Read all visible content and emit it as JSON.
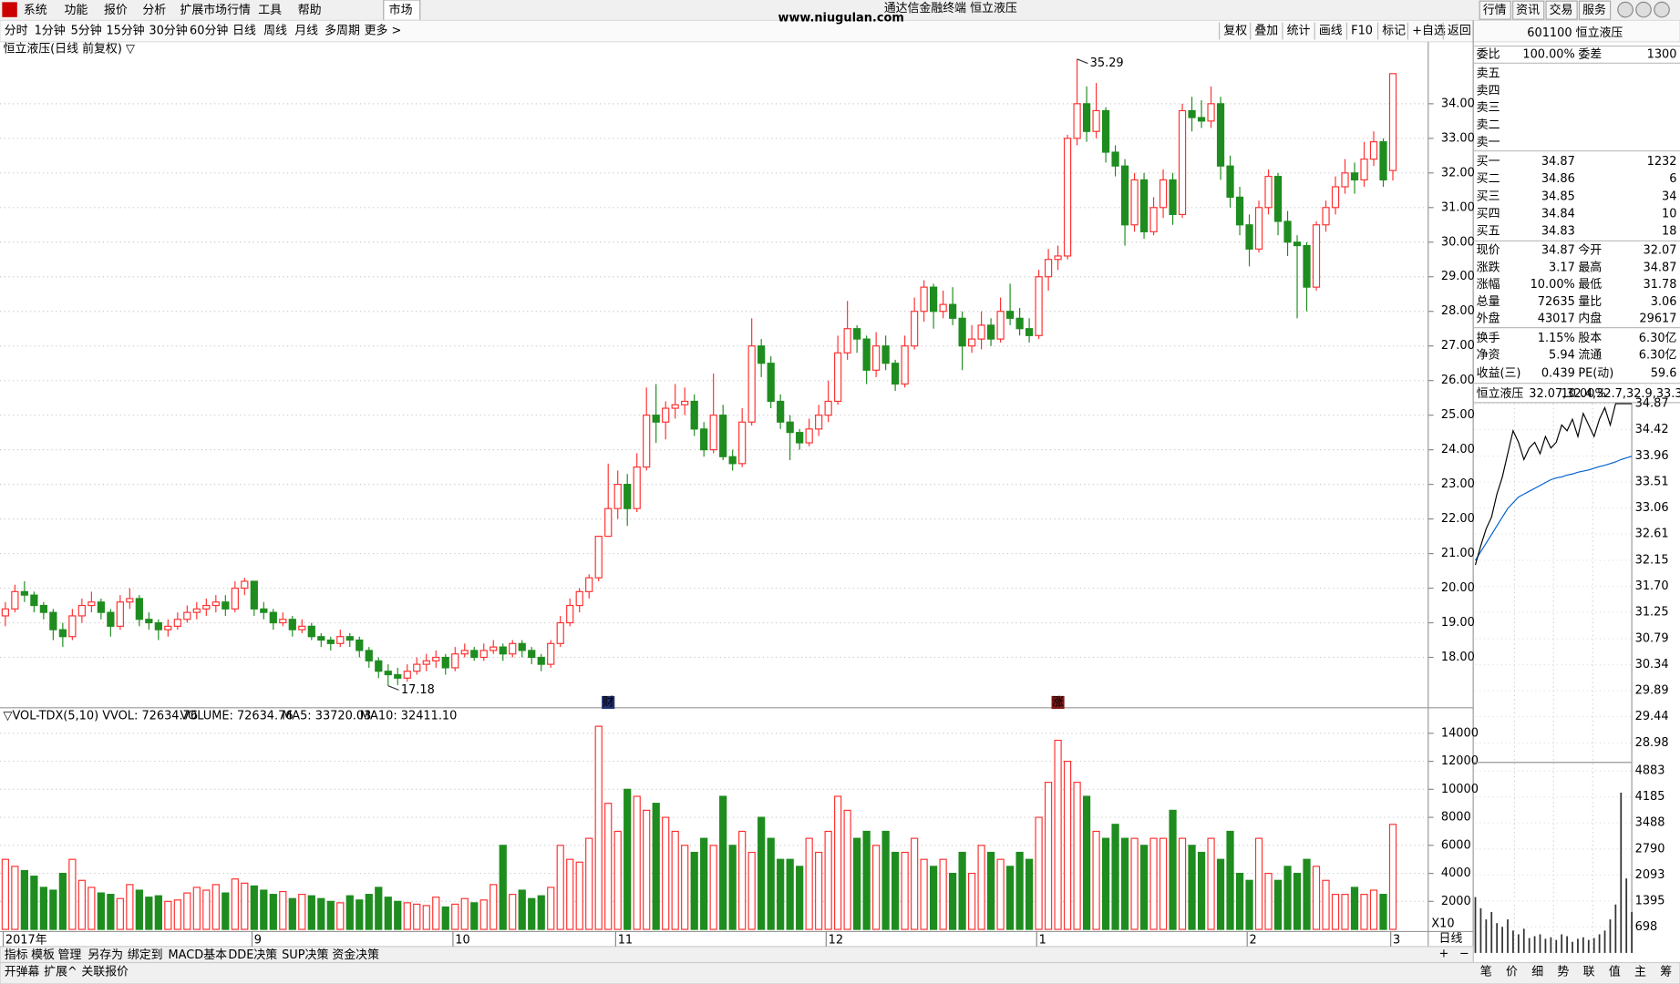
{
  "title_bar": "通达信金融终端 恒立液压",
  "watermark": "www.niugulan.com",
  "menu": [
    "系统",
    "功能",
    "报价",
    "分析",
    "扩展市场行情",
    "工具",
    "帮助"
  ],
  "market_tab": "市场",
  "top_buttons": [
    "行情",
    "资讯",
    "交易",
    "服务"
  ],
  "periods": [
    "分时",
    "1分钟",
    "5分钟",
    "15分钟",
    "30分钟",
    "60分钟",
    "日线",
    "周线",
    "月线",
    "多周期",
    "更多 >"
  ],
  "tools": [
    "复权",
    "叠加",
    "统计",
    "画线",
    "F10",
    "标记",
    "+自选",
    "返回"
  ],
  "chart_title": "恒立液压(日线 前复权) ▽",
  "kline": {
    "type": "candlestick",
    "ylim": [
      16.73,
      35.76
    ],
    "yticks": [
      {
        "value": 18,
        "label": "18.00"
      },
      {
        "value": 19,
        "label": "19.00"
      },
      {
        "value": 20,
        "label": "20.00"
      },
      {
        "value": 21,
        "label": "21.00"
      },
      {
        "value": 22,
        "label": "22.00"
      },
      {
        "value": 23,
        "label": "23.00"
      },
      {
        "value": 24,
        "label": "24.00"
      },
      {
        "value": 25,
        "label": "25.00"
      },
      {
        "value": 26,
        "label": "26.00"
      },
      {
        "value": 27,
        "label": "27.00"
      },
      {
        "value": 28,
        "label": "28.00"
      },
      {
        "value": 29,
        "label": "29.00"
      },
      {
        "value": 30,
        "label": "30.00"
      },
      {
        "value": 31,
        "label": "31.00"
      },
      {
        "value": 32,
        "label": "32.00"
      },
      {
        "value": 33,
        "label": "33.00"
      },
      {
        "value": 34,
        "label": "34.00"
      }
    ],
    "high_label": "35.29",
    "low_label": "17.18",
    "markers": [
      "财",
      "涨"
    ],
    "date_labels": [
      "2017年",
      "9",
      "10",
      "11",
      "12",
      "1",
      "2",
      "3"
    ],
    "candles": [
      [
        19.2,
        19.6,
        18.9,
        19.4
      ],
      [
        19.4,
        20.1,
        19.3,
        19.9
      ],
      [
        19.9,
        20.2,
        19.6,
        19.8
      ],
      [
        19.8,
        19.9,
        19.3,
        19.5
      ],
      [
        19.5,
        19.6,
        19.1,
        19.3
      ],
      [
        19.3,
        19.4,
        18.5,
        18.8
      ],
      [
        18.8,
        19.0,
        18.3,
        18.6
      ],
      [
        18.6,
        19.4,
        18.5,
        19.2
      ],
      [
        19.2,
        19.7,
        19.0,
        19.5
      ],
      [
        19.5,
        19.9,
        19.3,
        19.6
      ],
      [
        19.6,
        19.7,
        19.1,
        19.3
      ],
      [
        19.3,
        19.4,
        18.6,
        18.9
      ],
      [
        18.9,
        19.8,
        18.8,
        19.6
      ],
      [
        19.6,
        20.0,
        19.4,
        19.7
      ],
      [
        19.7,
        19.8,
        18.9,
        19.1
      ],
      [
        19.1,
        19.3,
        18.8,
        19.0
      ],
      [
        19.0,
        19.1,
        18.5,
        18.8
      ],
      [
        18.8,
        19.1,
        18.6,
        18.9
      ],
      [
        18.9,
        19.3,
        18.8,
        19.1
      ],
      [
        19.1,
        19.5,
        19.0,
        19.3
      ],
      [
        19.3,
        19.6,
        19.1,
        19.4
      ],
      [
        19.4,
        19.7,
        19.2,
        19.5
      ],
      [
        19.5,
        19.8,
        19.3,
        19.6
      ],
      [
        19.6,
        19.8,
        19.2,
        19.4
      ],
      [
        19.4,
        20.2,
        19.3,
        20.0
      ],
      [
        20.0,
        20.3,
        19.8,
        20.2
      ],
      [
        20.2,
        20.2,
        19.2,
        19.4
      ],
      [
        19.4,
        19.6,
        19.1,
        19.3
      ],
      [
        19.3,
        19.4,
        18.8,
        19.0
      ],
      [
        19.0,
        19.3,
        18.9,
        19.1
      ],
      [
        19.1,
        19.2,
        18.6,
        18.8
      ],
      [
        18.8,
        19.1,
        18.7,
        18.9
      ],
      [
        18.9,
        19.0,
        18.5,
        18.6
      ],
      [
        18.6,
        18.7,
        18.3,
        18.5
      ],
      [
        18.5,
        18.6,
        18.2,
        18.4
      ],
      [
        18.4,
        18.8,
        18.3,
        18.6
      ],
      [
        18.6,
        18.7,
        18.3,
        18.5
      ],
      [
        18.5,
        18.6,
        18.0,
        18.2
      ],
      [
        18.2,
        18.3,
        17.7,
        17.9
      ],
      [
        17.9,
        18.0,
        17.4,
        17.6
      ],
      [
        17.6,
        17.8,
        17.18,
        17.5
      ],
      [
        17.5,
        17.7,
        17.2,
        17.4
      ],
      [
        17.4,
        17.8,
        17.3,
        17.6
      ],
      [
        17.6,
        18.0,
        17.5,
        17.8
      ],
      [
        17.8,
        18.1,
        17.6,
        17.9
      ],
      [
        17.9,
        18.2,
        17.7,
        18.0
      ],
      [
        18.0,
        18.1,
        17.5,
        17.7
      ],
      [
        17.7,
        18.3,
        17.6,
        18.1
      ],
      [
        18.1,
        18.4,
        18.0,
        18.2
      ],
      [
        18.2,
        18.3,
        17.9,
        18.0
      ],
      [
        18.0,
        18.4,
        17.9,
        18.2
      ],
      [
        18.2,
        18.5,
        18.1,
        18.3
      ],
      [
        18.3,
        18.4,
        17.9,
        18.1
      ],
      [
        18.1,
        18.5,
        18.0,
        18.4
      ],
      [
        18.4,
        18.5,
        18.0,
        18.2
      ],
      [
        18.2,
        18.3,
        17.8,
        18.0
      ],
      [
        18.0,
        18.1,
        17.6,
        17.8
      ],
      [
        17.8,
        18.5,
        17.7,
        18.4
      ],
      [
        18.4,
        19.2,
        18.3,
        19.0
      ],
      [
        19.0,
        19.7,
        18.9,
        19.5
      ],
      [
        19.5,
        20.0,
        19.3,
        19.9
      ],
      [
        19.9,
        20.4,
        19.7,
        20.3
      ],
      [
        20.3,
        21.5,
        20.2,
        21.5
      ],
      [
        21.5,
        23.6,
        21.5,
        22.3
      ],
      [
        22.3,
        23.4,
        22.0,
        23.0
      ],
      [
        23.0,
        23.3,
        21.8,
        22.3
      ],
      [
        22.3,
        23.9,
        22.2,
        23.5
      ],
      [
        23.5,
        25.8,
        23.4,
        25.0
      ],
      [
        25.0,
        25.9,
        24.2,
        24.8
      ],
      [
        24.8,
        25.4,
        24.3,
        25.2
      ],
      [
        25.2,
        25.9,
        24.9,
        25.3
      ],
      [
        25.3,
        25.8,
        25.0,
        25.4
      ],
      [
        25.4,
        25.6,
        24.4,
        24.6
      ],
      [
        24.6,
        24.8,
        23.8,
        24.0
      ],
      [
        24.0,
        26.2,
        23.9,
        25.0
      ],
      [
        25.0,
        25.3,
        23.7,
        23.8
      ],
      [
        23.8,
        24.0,
        23.4,
        23.6
      ],
      [
        23.6,
        25.2,
        23.5,
        24.8
      ],
      [
        24.8,
        27.8,
        24.7,
        27.0
      ],
      [
        27.0,
        27.2,
        26.1,
        26.5
      ],
      [
        26.5,
        26.7,
        25.2,
        25.4
      ],
      [
        25.4,
        25.6,
        24.6,
        24.8
      ],
      [
        24.8,
        25.0,
        23.7,
        24.5
      ],
      [
        24.5,
        24.6,
        24.0,
        24.2
      ],
      [
        24.2,
        24.9,
        24.1,
        24.6
      ],
      [
        24.6,
        25.3,
        24.4,
        25.0
      ],
      [
        25.0,
        26.0,
        24.8,
        25.4
      ],
      [
        25.4,
        27.3,
        25.3,
        26.8
      ],
      [
        26.8,
        28.3,
        26.6,
        27.5
      ],
      [
        27.5,
        27.6,
        26.8,
        27.2
      ],
      [
        27.2,
        27.3,
        25.9,
        26.3
      ],
      [
        26.3,
        27.4,
        26.1,
        27.0
      ],
      [
        27.0,
        27.3,
        26.3,
        26.5
      ],
      [
        26.5,
        26.6,
        25.7,
        25.9
      ],
      [
        25.9,
        27.3,
        25.8,
        27.0
      ],
      [
        27.0,
        28.4,
        26.9,
        28.0
      ],
      [
        28.0,
        28.9,
        27.7,
        28.7
      ],
      [
        28.7,
        28.8,
        27.5,
        28.0
      ],
      [
        28.0,
        28.6,
        27.8,
        28.2
      ],
      [
        28.2,
        28.7,
        27.6,
        27.8
      ],
      [
        27.8,
        28.0,
        26.3,
        27.0
      ],
      [
        27.0,
        27.6,
        26.8,
        27.2
      ],
      [
        27.2,
        28.0,
        26.9,
        27.6
      ],
      [
        27.6,
        27.8,
        27.0,
        27.2
      ],
      [
        27.2,
        28.4,
        27.1,
        28.0
      ],
      [
        28.0,
        28.8,
        27.6,
        27.8
      ],
      [
        27.8,
        28.1,
        27.3,
        27.5
      ],
      [
        27.5,
        27.8,
        27.1,
        27.3
      ],
      [
        27.3,
        29.2,
        27.2,
        29.0
      ],
      [
        29.0,
        29.8,
        28.6,
        29.5
      ],
      [
        29.5,
        29.9,
        29.2,
        29.6
      ],
      [
        29.6,
        33.1,
        29.5,
        33.0
      ],
      [
        33.0,
        35.29,
        32.8,
        34.0
      ],
      [
        34.0,
        34.5,
        32.9,
        33.2
      ],
      [
        33.2,
        34.6,
        33.0,
        33.8
      ],
      [
        33.8,
        33.9,
        32.3,
        32.6
      ],
      [
        32.6,
        32.8,
        31.9,
        32.2
      ],
      [
        32.2,
        32.4,
        29.9,
        30.5
      ],
      [
        30.5,
        32.0,
        30.3,
        31.8
      ],
      [
        31.8,
        32.0,
        30.1,
        30.3
      ],
      [
        30.3,
        31.3,
        30.2,
        31.0
      ],
      [
        31.0,
        32.1,
        30.7,
        31.8
      ],
      [
        31.8,
        32.0,
        30.5,
        30.8
      ],
      [
        30.8,
        34.0,
        30.7,
        33.8
      ],
      [
        33.8,
        34.2,
        33.2,
        33.6
      ],
      [
        33.6,
        34.1,
        33.3,
        33.5
      ],
      [
        33.5,
        34.5,
        33.3,
        34.0
      ],
      [
        34.0,
        34.2,
        31.8,
        32.2
      ],
      [
        32.2,
        32.5,
        31.0,
        31.3
      ],
      [
        31.3,
        31.6,
        30.2,
        30.5
      ],
      [
        30.5,
        30.8,
        29.3,
        29.8
      ],
      [
        29.8,
        31.2,
        29.7,
        31.0
      ],
      [
        31.0,
        32.1,
        30.8,
        31.9
      ],
      [
        31.9,
        32.0,
        30.2,
        30.6
      ],
      [
        30.6,
        30.9,
        29.6,
        30.0
      ],
      [
        30.0,
        30.2,
        27.8,
        29.9
      ],
      [
        29.9,
        30.0,
        28.0,
        28.7
      ],
      [
        28.7,
        30.6,
        28.6,
        30.5
      ],
      [
        30.5,
        31.2,
        30.3,
        31.0
      ],
      [
        31.0,
        31.9,
        30.8,
        31.6
      ],
      [
        31.6,
        32.4,
        31.4,
        32.0
      ],
      [
        32.0,
        32.3,
        31.4,
        31.8
      ],
      [
        31.8,
        32.9,
        31.6,
        32.4
      ],
      [
        32.4,
        33.2,
        32.2,
        32.9
      ],
      [
        32.9,
        33.0,
        31.6,
        31.8
      ],
      [
        32.07,
        34.87,
        31.78,
        34.87
      ]
    ]
  },
  "volume": {
    "title": "▽VOL-TDX(5,10) VVOL: 72634.76",
    "legend": [
      "VOLUME: 72634.76",
      "MA5: 33720.03",
      "MA10: 32411.10"
    ],
    "multiplier": "X10",
    "ylim": [
      0,
      15670
    ],
    "yticks": [
      2000,
      4000,
      6000,
      8000,
      10000,
      12000,
      14000
    ],
    "values": [
      5000,
      4500,
      4200,
      3800,
      3000,
      2800,
      4000,
      5000,
      3500,
      3000,
      2600,
      2500,
      2200,
      3200,
      2800,
      2300,
      2400,
      2000,
      2100,
      2600,
      3000,
      2800,
      3200,
      2600,
      3600,
      3300,
      3100,
      2800,
      2500,
      2700,
      2200,
      2500,
      2400,
      2200,
      2000,
      1900,
      2400,
      2100,
      2500,
      3000,
      2300,
      2000,
      1900,
      1800,
      1700,
      2300,
      1600,
      1800,
      2200,
      1900,
      2100,
      3200,
      6000,
      2500,
      2800,
      2200,
      2400,
      3000,
      6000,
      5000,
      4800,
      6500,
      14500,
      9000,
      7000,
      10000,
      9500,
      8500,
      9000,
      8000,
      7000,
      6000,
      5500,
      6500,
      6000,
      9500,
      6000,
      7000,
      5500,
      8000,
      6500,
      5000,
      5000,
      4500,
      6500,
      5500,
      7000,
      9500,
      8500,
      6500,
      7000,
      6000,
      7000,
      5500,
      5500,
      6500,
      5000,
      4500,
      5000,
      4000,
      5500,
      4000,
      6000,
      5500,
      5000,
      4500,
      5500,
      5000,
      8000,
      10500,
      13500,
      12000,
      10500,
      9500,
      7000,
      6500,
      7500,
      6500,
      6500,
      6000,
      6500,
      6500,
      8500,
      6500,
      6000,
      5500,
      6500,
      5000,
      7000,
      4000,
      3500,
      6500,
      4000,
      3500,
      4500,
      4000,
      5000,
      4500,
      3500,
      2500,
      2500,
      3000,
      2500,
      2800,
      2500,
      7500
    ]
  },
  "period_label": "日线",
  "zoom": [
    "+",
    "−"
  ],
  "bottom_tabs": [
    "指标",
    "模板",
    "管理",
    "另存为",
    "绑定到",
    "MACD基本",
    "DDE决策",
    "SUP决策",
    "资金决策"
  ],
  "bottom_tabs2": [
    "开弹幕",
    "扩展^",
    "关联报价"
  ],
  "side_tabs": [
    "笔",
    "价",
    "细",
    "势",
    "联",
    "值",
    "主",
    "筹"
  ],
  "stock_header": "601100 恒立液压",
  "book": {
    "ratio": [
      "委比",
      "100.00%",
      "委差",
      "1300"
    ],
    "sells": [
      "卖五",
      "卖四",
      "卖三",
      "卖二",
      "卖一"
    ],
    "buys": [
      [
        "买一",
        "34.87",
        "1232"
      ],
      [
        "买二",
        "34.86",
        "6"
      ],
      [
        "买三",
        "34.85",
        "34"
      ],
      [
        "买四",
        "34.84",
        "10"
      ],
      [
        "买五",
        "34.83",
        "18"
      ]
    ]
  },
  "quote": [
    [
      "现价",
      "34.87",
      "今开",
      "32.07"
    ],
    [
      "涨跌",
      "3.17",
      "最高",
      "34.87"
    ],
    [
      "涨幅",
      "10.00%",
      "最低",
      "31.78"
    ],
    [
      "总量",
      "72635",
      "量比",
      "3.06"
    ],
    [
      "外盘",
      "43017",
      "内盘",
      "29617"
    ],
    [
      "换手",
      "1.15%",
      "股本",
      "6.30亿"
    ],
    [
      "净资",
      "5.94",
      "流通",
      "6.30亿"
    ],
    [
      "收益(三)",
      "0.439",
      "PE(动)",
      "59.6"
    ]
  ],
  "mini": {
    "name": "恒立液压",
    "price": [
      32.07,
      32.4,
      32.7,
      32.9,
      33.3,
      33.6,
      34.0,
      34.4,
      34.2,
      33.9,
      34.1,
      34.2,
      34.0,
      34.3,
      34.1,
      34.2,
      34.5,
      34.4,
      34.6,
      34.3,
      34.7,
      34.5,
      34.3,
      34.6,
      34.8,
      34.5,
      34.87,
      34.87,
      34.87,
      34.87
    ],
    "change": "10.00%",
    "ylim": [
      28.98,
      34.87
    ],
    "yticks": [
      34.87,
      34.42,
      33.96,
      33.51,
      33.06,
      32.61,
      32.15,
      {
        "value": 31.7,
        "label": "31.70"
      },
      31.25,
      30.79,
      30.34,
      29.89,
      29.44,
      28.98
    ],
    "average": [
      32.15,
      32.3,
      32.45,
      32.6,
      32.75,
      32.9,
      33.05,
      33.15,
      33.25,
      33.3,
      33.35,
      33.4,
      33.45,
      33.5,
      33.55,
      33.58,
      33.6,
      33.63,
      33.65,
      33.68,
      33.7,
      33.72,
      33.75,
      33.78,
      33.8,
      33.83,
      33.86,
      33.9,
      33.93,
      33.96
    ],
    "vlim": [
      0,
      4883
    ],
    "vticks": [
      698,
      1395,
      2093,
      2790,
      3488,
      4185,
      4883
    ],
    "volume": [
      1500,
      1200,
      900,
      1100,
      800,
      700,
      900,
      600,
      500,
      650,
      400,
      450,
      500,
      380,
      420,
      350,
      500,
      450,
      300,
      380,
      420,
      350,
      400,
      500,
      600,
      900,
      1300,
      4300,
      2000,
      1100
    ]
  }
}
